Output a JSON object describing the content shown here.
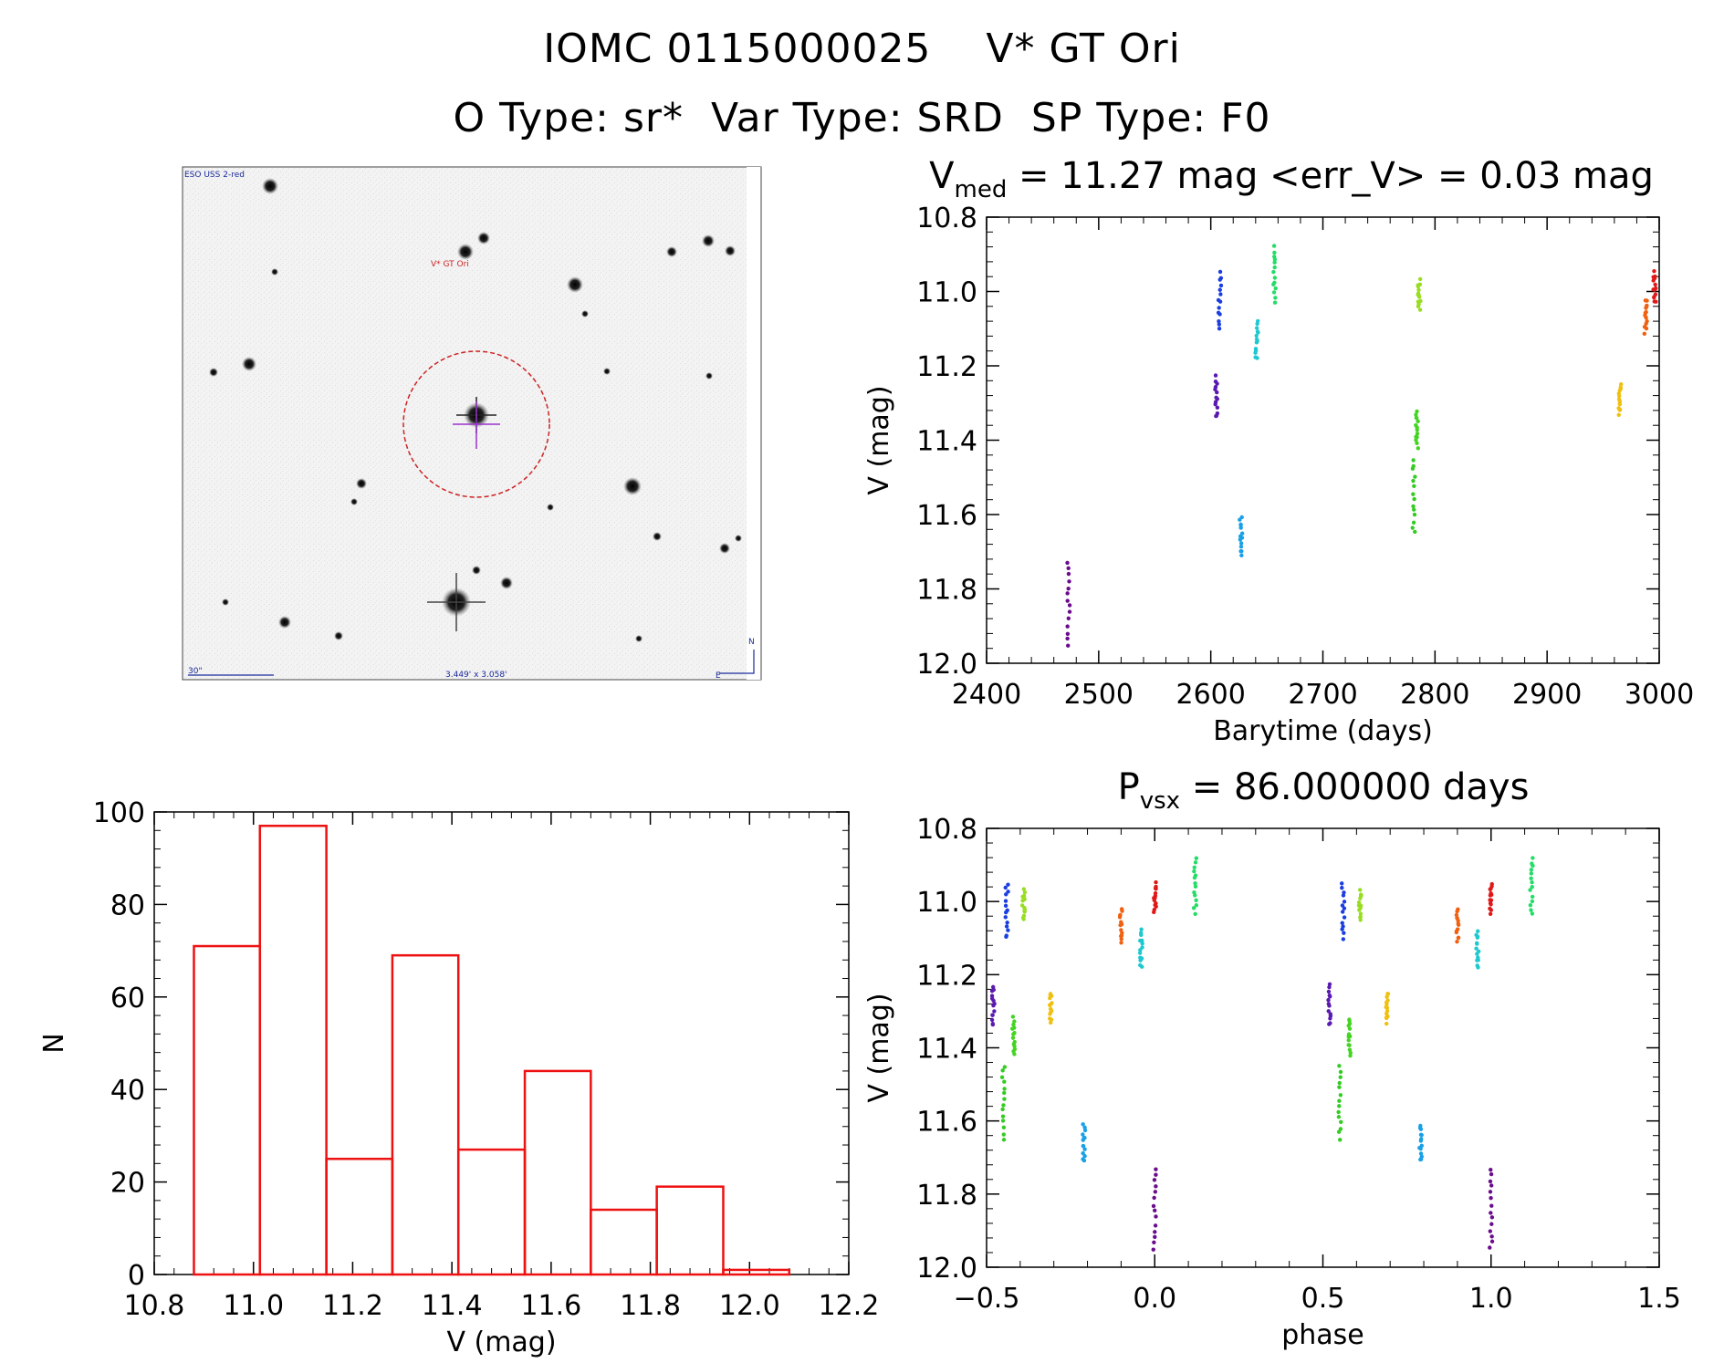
{
  "title": {
    "line1": "IOMC 0115000025    V* GT Ori",
    "line2": "O Type: sr*  Var Type: SRD  SP Type: F0"
  },
  "finder_chart": {
    "survey_label": "ESO USS 2-red",
    "target_label": "V* GT Ori",
    "scale_label": "30\"",
    "fov_label": "3.449' x 3.058'",
    "north_label": "N",
    "east_label": "E",
    "colors": {
      "circle": "#cc2222",
      "crosshair": "#9933cc",
      "label": "#1a2a9a"
    }
  },
  "chart_data": [
    {
      "id": "light-curve",
      "type": "scatter",
      "title_main": "V",
      "title_sub": "med",
      "title_rest": " = 11.27 mag <err_V> = 0.03 mag",
      "xlabel": "Barytime (days)",
      "ylabel": "V (mag)",
      "xlim": [
        2400,
        3000
      ],
      "ylim": [
        12.0,
        10.8
      ],
      "xticks": [
        "2400",
        "2500",
        "2600",
        "2700",
        "2800",
        "2900",
        "3000"
      ],
      "yticks": [
        "10.8",
        "11.0",
        "11.2",
        "11.4",
        "11.6",
        "11.8",
        "12.0"
      ],
      "series": [
        {
          "name": "s1",
          "color": "#6a0c8c",
          "x": 2473,
          "y_min": 11.73,
          "y_max": 11.95
        },
        {
          "name": "s2",
          "color": "#5a1ab0",
          "x": 2605,
          "y_min": 11.23,
          "y_max": 11.34
        },
        {
          "name": "s3",
          "color": "#1b3ee0",
          "x": 2608,
          "y_min": 10.95,
          "y_max": 11.1
        },
        {
          "name": "s4",
          "color": "#1aa0e6",
          "x": 2627,
          "y_min": 11.61,
          "y_max": 11.71
        },
        {
          "name": "s5",
          "color": "#1ec8d0",
          "x": 2641,
          "y_min": 11.08,
          "y_max": 11.18
        },
        {
          "name": "s6",
          "color": "#22dd66",
          "x": 2657,
          "y_min": 10.88,
          "y_max": 11.03
        },
        {
          "name": "s7",
          "color": "#33cc22",
          "x": 2781,
          "y_min": 11.45,
          "y_max": 11.65
        },
        {
          "name": "s8",
          "color": "#44d422",
          "x": 2784,
          "y_min": 11.32,
          "y_max": 11.42
        },
        {
          "name": "s9",
          "color": "#99dd22",
          "x": 2786,
          "y_min": 10.97,
          "y_max": 11.05
        },
        {
          "name": "s10",
          "color": "#f0c010",
          "x": 2965,
          "y_min": 11.25,
          "y_max": 11.33
        },
        {
          "name": "s11",
          "color": "#f06010",
          "x": 2988,
          "y_min": 11.02,
          "y_max": 11.11
        },
        {
          "name": "s12",
          "color": "#e01818",
          "x": 2996,
          "y_min": 10.95,
          "y_max": 11.03
        }
      ]
    },
    {
      "id": "histogram",
      "type": "bar",
      "xlabel": "V (mag)",
      "ylabel": "N",
      "xlim": [
        10.8,
        12.2
      ],
      "ylim": [
        0,
        100
      ],
      "xticks": [
        "10.8",
        "11.0",
        "11.2",
        "11.4",
        "11.6",
        "11.8",
        "12.0",
        "12.2"
      ],
      "yticks": [
        "0",
        "20",
        "40",
        "60",
        "80",
        "100"
      ],
      "color": "#ee1111",
      "bin_edges": [
        10.88,
        11.013,
        11.147,
        11.28,
        11.413,
        11.547,
        11.68,
        11.813,
        11.947,
        12.08
      ],
      "counts": [
        71,
        97,
        25,
        69,
        27,
        44,
        14,
        19,
        1
      ]
    },
    {
      "id": "phase-plot",
      "type": "scatter",
      "title_main": "P",
      "title_sub": "vsx",
      "title_rest": " = 86.000000 days",
      "xlabel": "phase",
      "ylabel": "V (mag)",
      "xlim": [
        -0.5,
        1.5
      ],
      "ylim": [
        12.0,
        10.8
      ],
      "xticks": [
        "−0.5",
        "0.0",
        "0.5",
        "1.0",
        "1.5"
      ],
      "yticks": [
        "10.8",
        "11.0",
        "11.2",
        "11.4",
        "11.6",
        "11.8",
        "12.0"
      ],
      "series": [
        {
          "name": "s1",
          "color": "#6a0c8c",
          "x": [
            0.0,
            1.0
          ],
          "y_min": 11.73,
          "y_max": 11.95
        },
        {
          "name": "s2",
          "color": "#5a1ab0",
          "x": [
            -0.48,
            0.52
          ],
          "y_min": 11.23,
          "y_max": 11.34
        },
        {
          "name": "s3",
          "color": "#1b3ee0",
          "x": [
            -0.44,
            0.56
          ],
          "y_min": 10.95,
          "y_max": 11.1
        },
        {
          "name": "s4",
          "color": "#1aa0e6",
          "x": [
            -0.21,
            0.79
          ],
          "y_min": 11.61,
          "y_max": 11.71
        },
        {
          "name": "s5",
          "color": "#1ec8d0",
          "x": [
            -0.04,
            0.96
          ],
          "y_min": 11.08,
          "y_max": 11.18
        },
        {
          "name": "s6",
          "color": "#22dd66",
          "x": [
            0.12,
            1.12
          ],
          "y_min": 10.88,
          "y_max": 11.03
        },
        {
          "name": "s7",
          "color": "#33cc22",
          "x": [
            -0.45,
            0.55
          ],
          "y_min": 11.45,
          "y_max": 11.65
        },
        {
          "name": "s8",
          "color": "#44d422",
          "x": [
            -0.42,
            0.58
          ],
          "y_min": 11.32,
          "y_max": 11.42
        },
        {
          "name": "s9",
          "color": "#99dd22",
          "x": [
            -0.39,
            0.61
          ],
          "y_min": 10.97,
          "y_max": 11.05
        },
        {
          "name": "s10",
          "color": "#f0c010",
          "x": [
            -0.31,
            0.69
          ],
          "y_min": 11.25,
          "y_max": 11.33
        },
        {
          "name": "s11",
          "color": "#f06010",
          "x": [
            -0.1,
            0.9
          ],
          "y_min": 11.02,
          "y_max": 11.11
        },
        {
          "name": "s12",
          "color": "#e01818",
          "x": [
            0.0,
            1.0
          ],
          "y_min": 10.95,
          "y_max": 11.03
        }
      ]
    }
  ]
}
